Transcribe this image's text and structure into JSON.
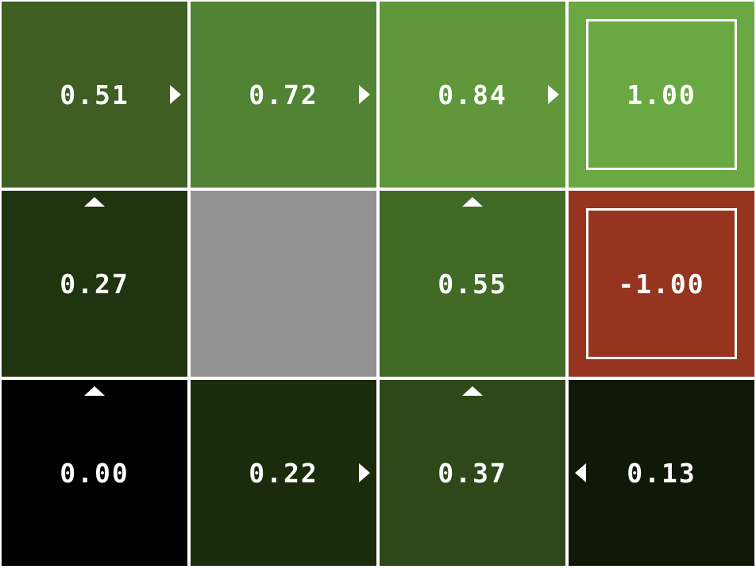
{
  "grid": {
    "rows": 3,
    "cols": 4,
    "cells": [
      {
        "value": "0.51",
        "color": "#3e5e22",
        "arrow": "right",
        "terminal": false
      },
      {
        "value": "0.72",
        "color": "#528234",
        "arrow": "right",
        "terminal": false
      },
      {
        "value": "0.84",
        "color": "#5f973a",
        "arrow": "right",
        "terminal": false
      },
      {
        "value": "1.00",
        "color": "#6aa843",
        "arrow": null,
        "terminal": true
      },
      {
        "value": "0.27",
        "color": "#20340f",
        "arrow": "up",
        "terminal": false
      },
      {
        "value": "",
        "color": "#939393",
        "arrow": null,
        "terminal": false,
        "wall": true
      },
      {
        "value": "0.55",
        "color": "#426a27",
        "arrow": "up",
        "terminal": false
      },
      {
        "value": "-1.00",
        "color": "#97341f",
        "arrow": null,
        "terminal": true
      },
      {
        "value": "0.00",
        "color": "#000000",
        "arrow": "up",
        "terminal": false
      },
      {
        "value": "0.22",
        "color": "#1b2c0d",
        "arrow": "right",
        "terminal": false
      },
      {
        "value": "0.37",
        "color": "#2e481a",
        "arrow": "up",
        "terminal": false
      },
      {
        "value": "0.13",
        "color": "#0e1908",
        "arrow": "left",
        "terminal": false
      }
    ]
  }
}
